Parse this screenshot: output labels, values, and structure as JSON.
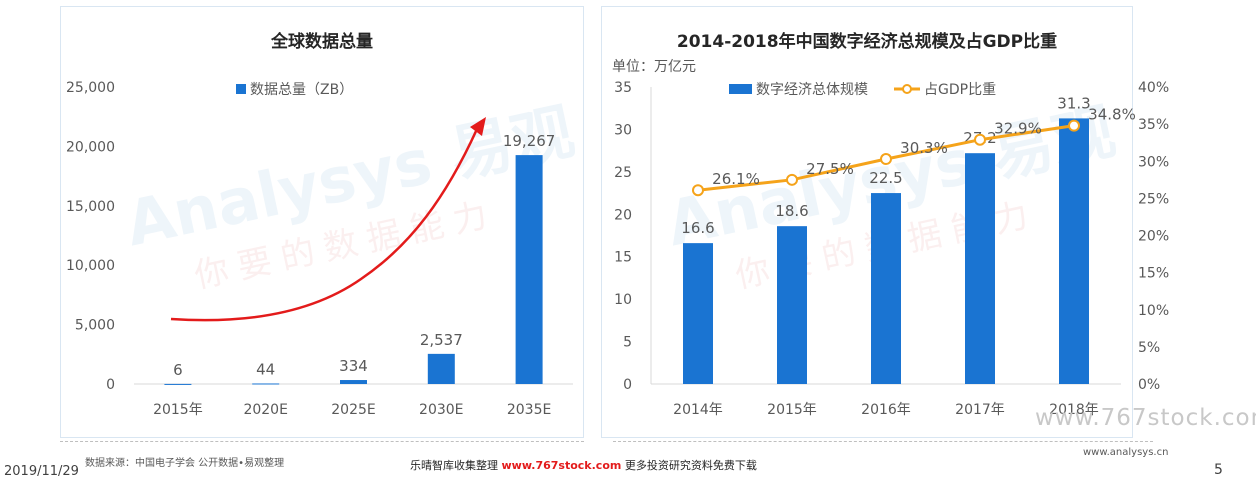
{
  "charts": {
    "left": {
      "title": "全球数据总量"
    },
    "right": {
      "title": "2014-2018年中国数字经济总规模及占GDP比重",
      "unit_label": "单位：万亿元"
    }
  },
  "colors": {
    "bar": "#1a74d2",
    "line": "#f5a31a",
    "arrow": "#e31b1b"
  },
  "chart_data": [
    {
      "type": "bar",
      "title": "全球数据总量",
      "categories": [
        "2015年",
        "2020E",
        "2025E",
        "2030E",
        "2035E"
      ],
      "series": [
        {
          "name": "数据总量（ZB）",
          "values": [
            6,
            44,
            334,
            2537,
            19267
          ],
          "labels": [
            "6",
            "44",
            "334",
            "2,537",
            "19,267"
          ]
        }
      ],
      "ylim": [
        0,
        25000
      ],
      "yticks": [
        "0",
        "5,000",
        "10,000",
        "15,000",
        "20,000",
        "25,000"
      ],
      "legend": "top-center",
      "annotation": "red growth arrow"
    },
    {
      "type": "bar+line",
      "title": "2014-2018年中国数字经济总规模及占GDP比重",
      "categories": [
        "2014年",
        "2015年",
        "2016年",
        "2017年",
        "2018年"
      ],
      "series": [
        {
          "name": "数字经济总体规模",
          "type": "bar",
          "axis": "left",
          "values": [
            16.6,
            18.6,
            22.5,
            27.2,
            31.3
          ],
          "labels": [
            "16.6",
            "18.6",
            "22.5",
            "27.2",
            "31.3"
          ]
        },
        {
          "name": "占GDP比重",
          "type": "line",
          "axis": "right",
          "values": [
            26.1,
            27.5,
            30.3,
            32.9,
            34.8
          ],
          "labels": [
            "26.1%",
            "27.5%",
            "30.3%",
            "32.9%",
            "34.8%"
          ]
        }
      ],
      "ylim_left": [
        0,
        35
      ],
      "yticks_left": [
        "0",
        "5",
        "10",
        "15",
        "20",
        "25",
        "30",
        "35"
      ],
      "ylim_right": [
        0,
        40
      ],
      "yticks_right": [
        "0%",
        "5%",
        "10%",
        "15%",
        "20%",
        "25%",
        "30%",
        "35%",
        "40%"
      ],
      "ylabel": "单位：万亿元",
      "legend": "top-center"
    }
  ],
  "footer": {
    "source": "数据来源：中国电子学会 公开数据•易观整理",
    "date": "2019/11/29",
    "promo_prefix": "乐晴智库收集整理",
    "promo_site": "www.767stock.com",
    "promo_suffix": "更多投资研究资料免费下载",
    "website": "www.analysys.cn",
    "page": "5",
    "watermark_site": "www.767stock.com"
  },
  "watermarks": {
    "brand": "Analysys 易观",
    "slogan": "你要的数据能力"
  }
}
